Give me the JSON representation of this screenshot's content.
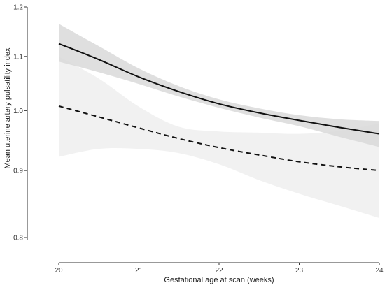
{
  "chart_data": {
    "type": "line",
    "title": "",
    "xlabel": "Gestational age at scan (weeks)",
    "ylabel": "Mean uterine artery pulsatility index",
    "xlim": [
      20,
      24
    ],
    "ylim": [
      0.8,
      1.2
    ],
    "y_scale": "log",
    "x_ticks": [
      20,
      21,
      22,
      23,
      24
    ],
    "x_tick_labels": [
      "20",
      "21",
      "22",
      "23",
      "24"
    ],
    "y_ticks": [
      0.8,
      0.9,
      1.0,
      1.1,
      1.2
    ],
    "y_tick_labels": [
      "0.8",
      "0.9",
      "1.0",
      "1.1",
      "1.2"
    ],
    "grid": false,
    "series": [
      {
        "line_style": "solid",
        "color": "#111111",
        "band_color": "#d9d9d9",
        "x": [
          20,
          20.5,
          21,
          21.5,
          22,
          22.5,
          23,
          23.5,
          24
        ],
        "y": [
          1.125,
          1.094,
          1.061,
          1.034,
          1.012,
          0.996,
          0.983,
          0.971,
          0.96
        ],
        "lower": [
          1.09,
          1.07,
          1.048,
          1.025,
          1.005,
          0.988,
          0.973,
          0.955,
          0.938
        ],
        "upper": [
          1.165,
          1.12,
          1.077,
          1.044,
          1.02,
          1.004,
          0.992,
          0.985,
          0.982
        ]
      },
      {
        "line_style": "dashed",
        "color": "#111111",
        "band_color": "#f0f0f0",
        "x": [
          20,
          20.5,
          21,
          21.5,
          22,
          22.5,
          23,
          23.5,
          24
        ],
        "y": [
          1.008,
          0.989,
          0.97,
          0.952,
          0.937,
          0.925,
          0.914,
          0.906,
          0.9
        ],
        "lower": [
          0.922,
          0.935,
          0.935,
          0.928,
          0.91,
          0.885,
          0.864,
          0.846,
          0.828
        ],
        "upper": [
          1.1,
          1.058,
          1.007,
          0.972,
          0.964,
          0.962,
          0.96,
          0.965,
          0.978
        ]
      }
    ]
  }
}
